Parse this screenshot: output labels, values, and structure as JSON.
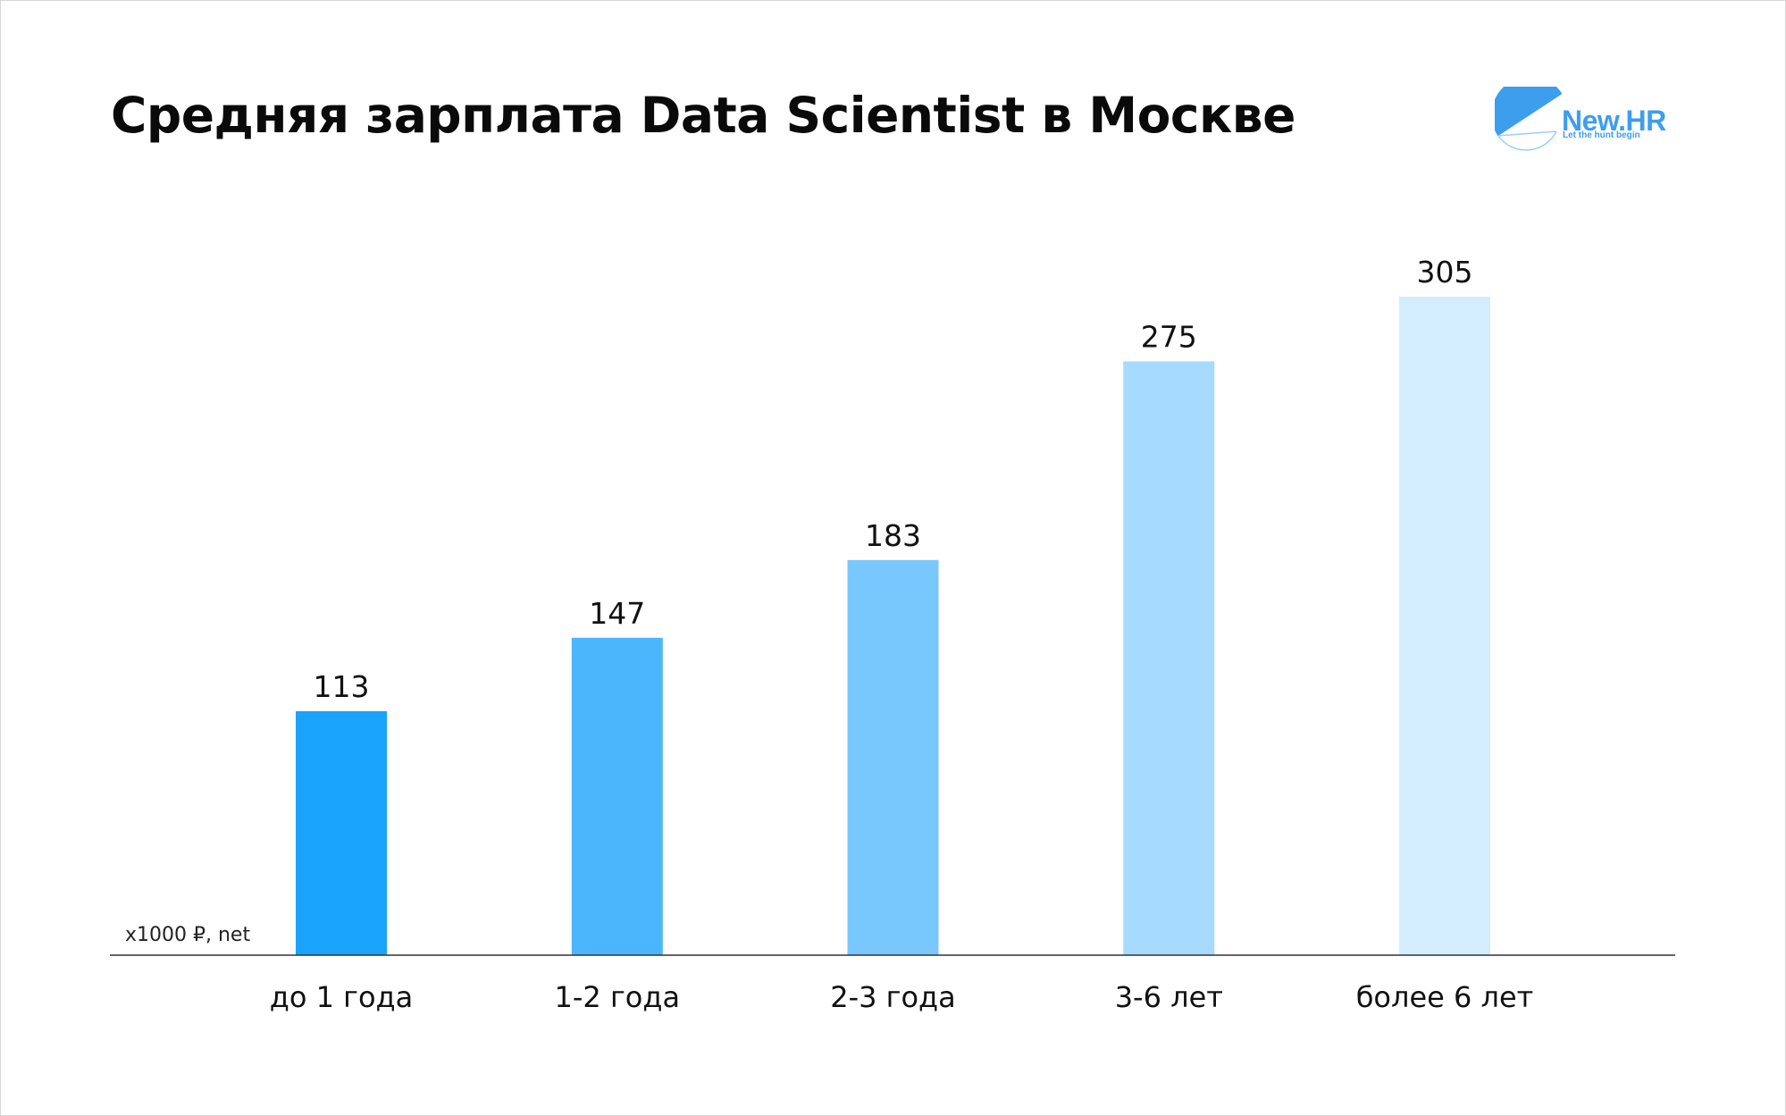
{
  "header": {
    "title": "Средняя зарплата Data Scientist в Москве"
  },
  "logo": {
    "brand": "New.HR",
    "tagline": "Let the hunt begin",
    "color": "#3d9eed"
  },
  "chart_data": {
    "type": "bar",
    "title": "Средняя зарплата Data Scientist в Москве",
    "unit_label": "x1000 ₽, net",
    "xlabel": "",
    "ylabel": "",
    "categories": [
      "до 1 года",
      "1-2 года",
      "2-3 года",
      "3-6 лет",
      "более 6 лет"
    ],
    "values": [
      113,
      147,
      183,
      275,
      305
    ],
    "bar_colors": [
      "#1aa3fb",
      "#4bb6fc",
      "#78c8fd",
      "#a6dafe",
      "#d3edfc"
    ],
    "ylim": [
      0,
      305
    ],
    "grid": false,
    "legend": "none"
  }
}
